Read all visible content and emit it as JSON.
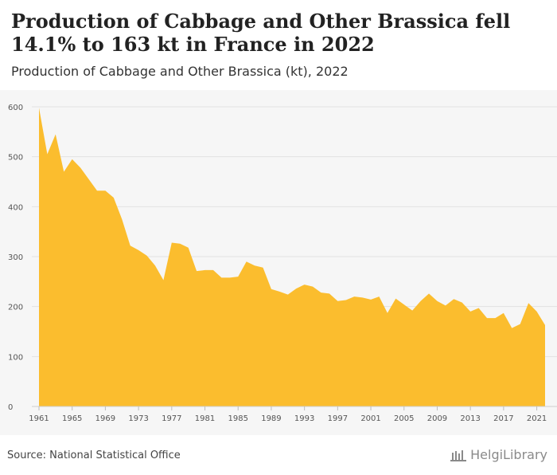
{
  "header": {
    "title": "Production of Cabbage and Other Brassica fell 14.1% to 163 kt in France in 2022",
    "subtitle": "Production of Cabbage and Other Brassica (kt), 2022"
  },
  "footer": {
    "source": "Source: National Statistical Office",
    "brand": "HelgiLibrary"
  },
  "colors": {
    "area": "#fbbd2e",
    "grid": "#e2e2e2",
    "tick_text": "#555555",
    "background": "#f6f6f6"
  },
  "chart_data": {
    "type": "area",
    "title": "Production of Cabbage and Other Brassica fell 14.1% to 163 kt in France in 2022",
    "subtitle": "Production of Cabbage and Other Brassica (kt), 2022",
    "xlabel": "",
    "ylabel": "",
    "ylim": [
      0,
      600
    ],
    "yticks": [
      0,
      100,
      200,
      300,
      400,
      500,
      600
    ],
    "xticks": [
      1961,
      1965,
      1969,
      1973,
      1977,
      1981,
      1985,
      1989,
      1993,
      1997,
      2001,
      2005,
      2009,
      2013,
      2017,
      2021
    ],
    "grid": true,
    "legend": "none",
    "x": [
      1961,
      1962,
      1963,
      1964,
      1965,
      1966,
      1967,
      1968,
      1969,
      1970,
      1971,
      1972,
      1973,
      1974,
      1975,
      1976,
      1977,
      1978,
      1979,
      1980,
      1981,
      1982,
      1983,
      1984,
      1985,
      1986,
      1987,
      1988,
      1989,
      1990,
      1991,
      1992,
      1993,
      1994,
      1995,
      1996,
      1997,
      1998,
      1999,
      2000,
      2001,
      2002,
      2003,
      2004,
      2005,
      2006,
      2007,
      2008,
      2009,
      2010,
      2011,
      2012,
      2013,
      2014,
      2015,
      2016,
      2017,
      2018,
      2019,
      2020,
      2021,
      2022
    ],
    "series": [
      {
        "values": [
          598,
          505,
          545,
          470,
          495,
          478,
          455,
          432,
          432,
          418,
          375,
          322,
          313,
          302,
          282,
          253,
          328,
          326,
          318,
          271,
          273,
          273,
          258,
          258,
          260,
          290,
          282,
          278,
          235,
          230,
          224,
          236,
          244,
          240,
          228,
          226,
          211,
          213,
          220,
          218,
          214,
          220,
          187,
          216,
          204,
          192,
          211,
          226,
          211,
          202,
          215,
          208,
          190,
          197,
          177,
          177,
          187,
          157,
          165,
          207,
          190,
          163
        ]
      }
    ]
  }
}
